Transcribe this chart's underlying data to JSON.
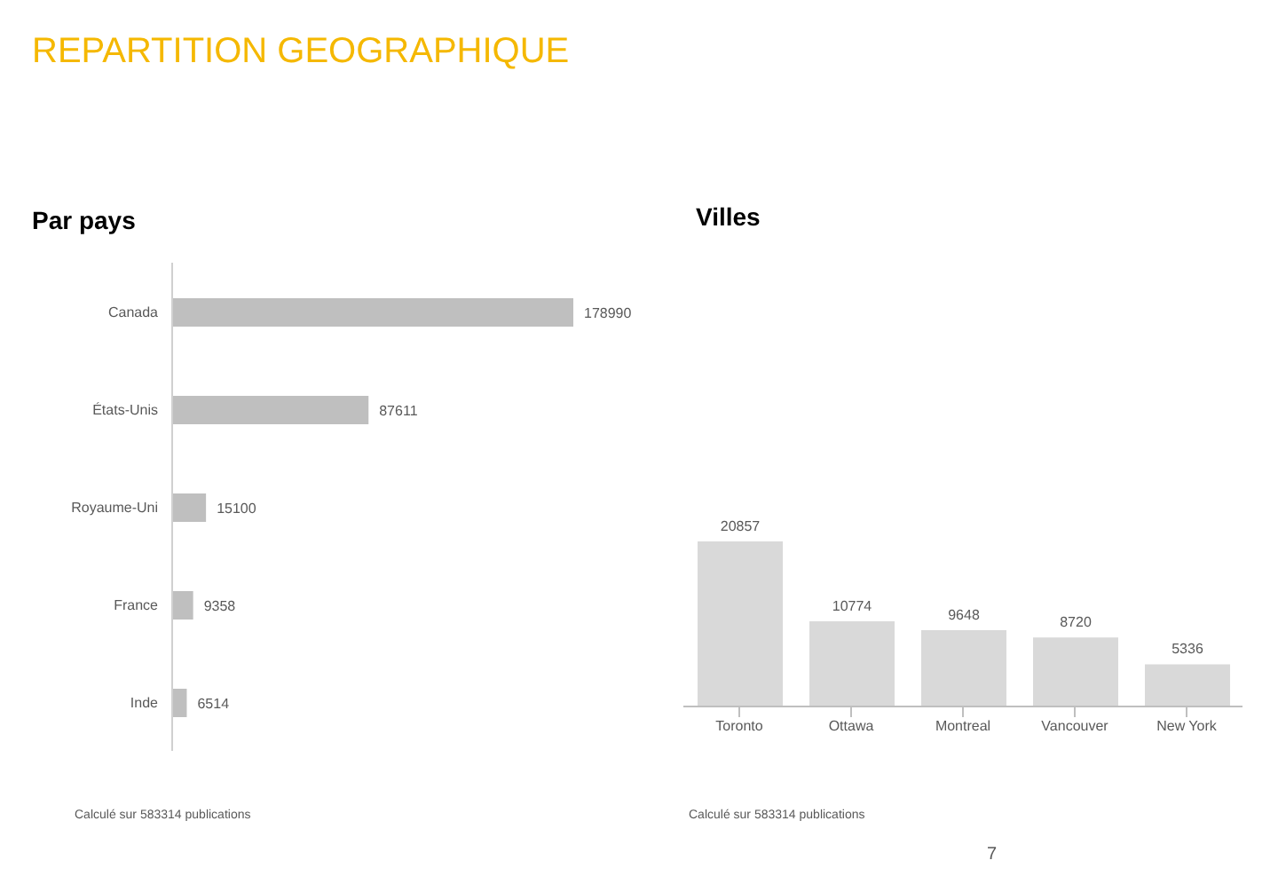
{
  "chart_data": [
    {
      "type": "bar",
      "orientation": "horizontal",
      "title": "REPARTITION GEOGRAPHIQUE",
      "subtitle": "Par pays",
      "categories": [
        "Canada",
        "États-Unis",
        "Royaume-Uni",
        "France",
        "Inde"
      ],
      "values": [
        178990,
        87611,
        15100,
        9358,
        6514
      ],
      "color": "#bfbfbf",
      "data_labels": true,
      "legend": false,
      "grid": false,
      "tick_labels": "y",
      "annotations": [
        "Calculé sur 583314 publications"
      ]
    },
    {
      "type": "bar",
      "title": "Villes",
      "categories": [
        "Toronto",
        "Ottawa",
        "Montreal",
        "Vancouver",
        "New York"
      ],
      "values": [
        20857,
        10774,
        9648,
        8720,
        5336
      ],
      "color": "#d9d9d9",
      "data_labels": true,
      "legend": false,
      "grid": false,
      "tick_labels": "x",
      "annotations": [
        "Calculé sur 583314 publications",
        "7"
      ]
    }
  ]
}
